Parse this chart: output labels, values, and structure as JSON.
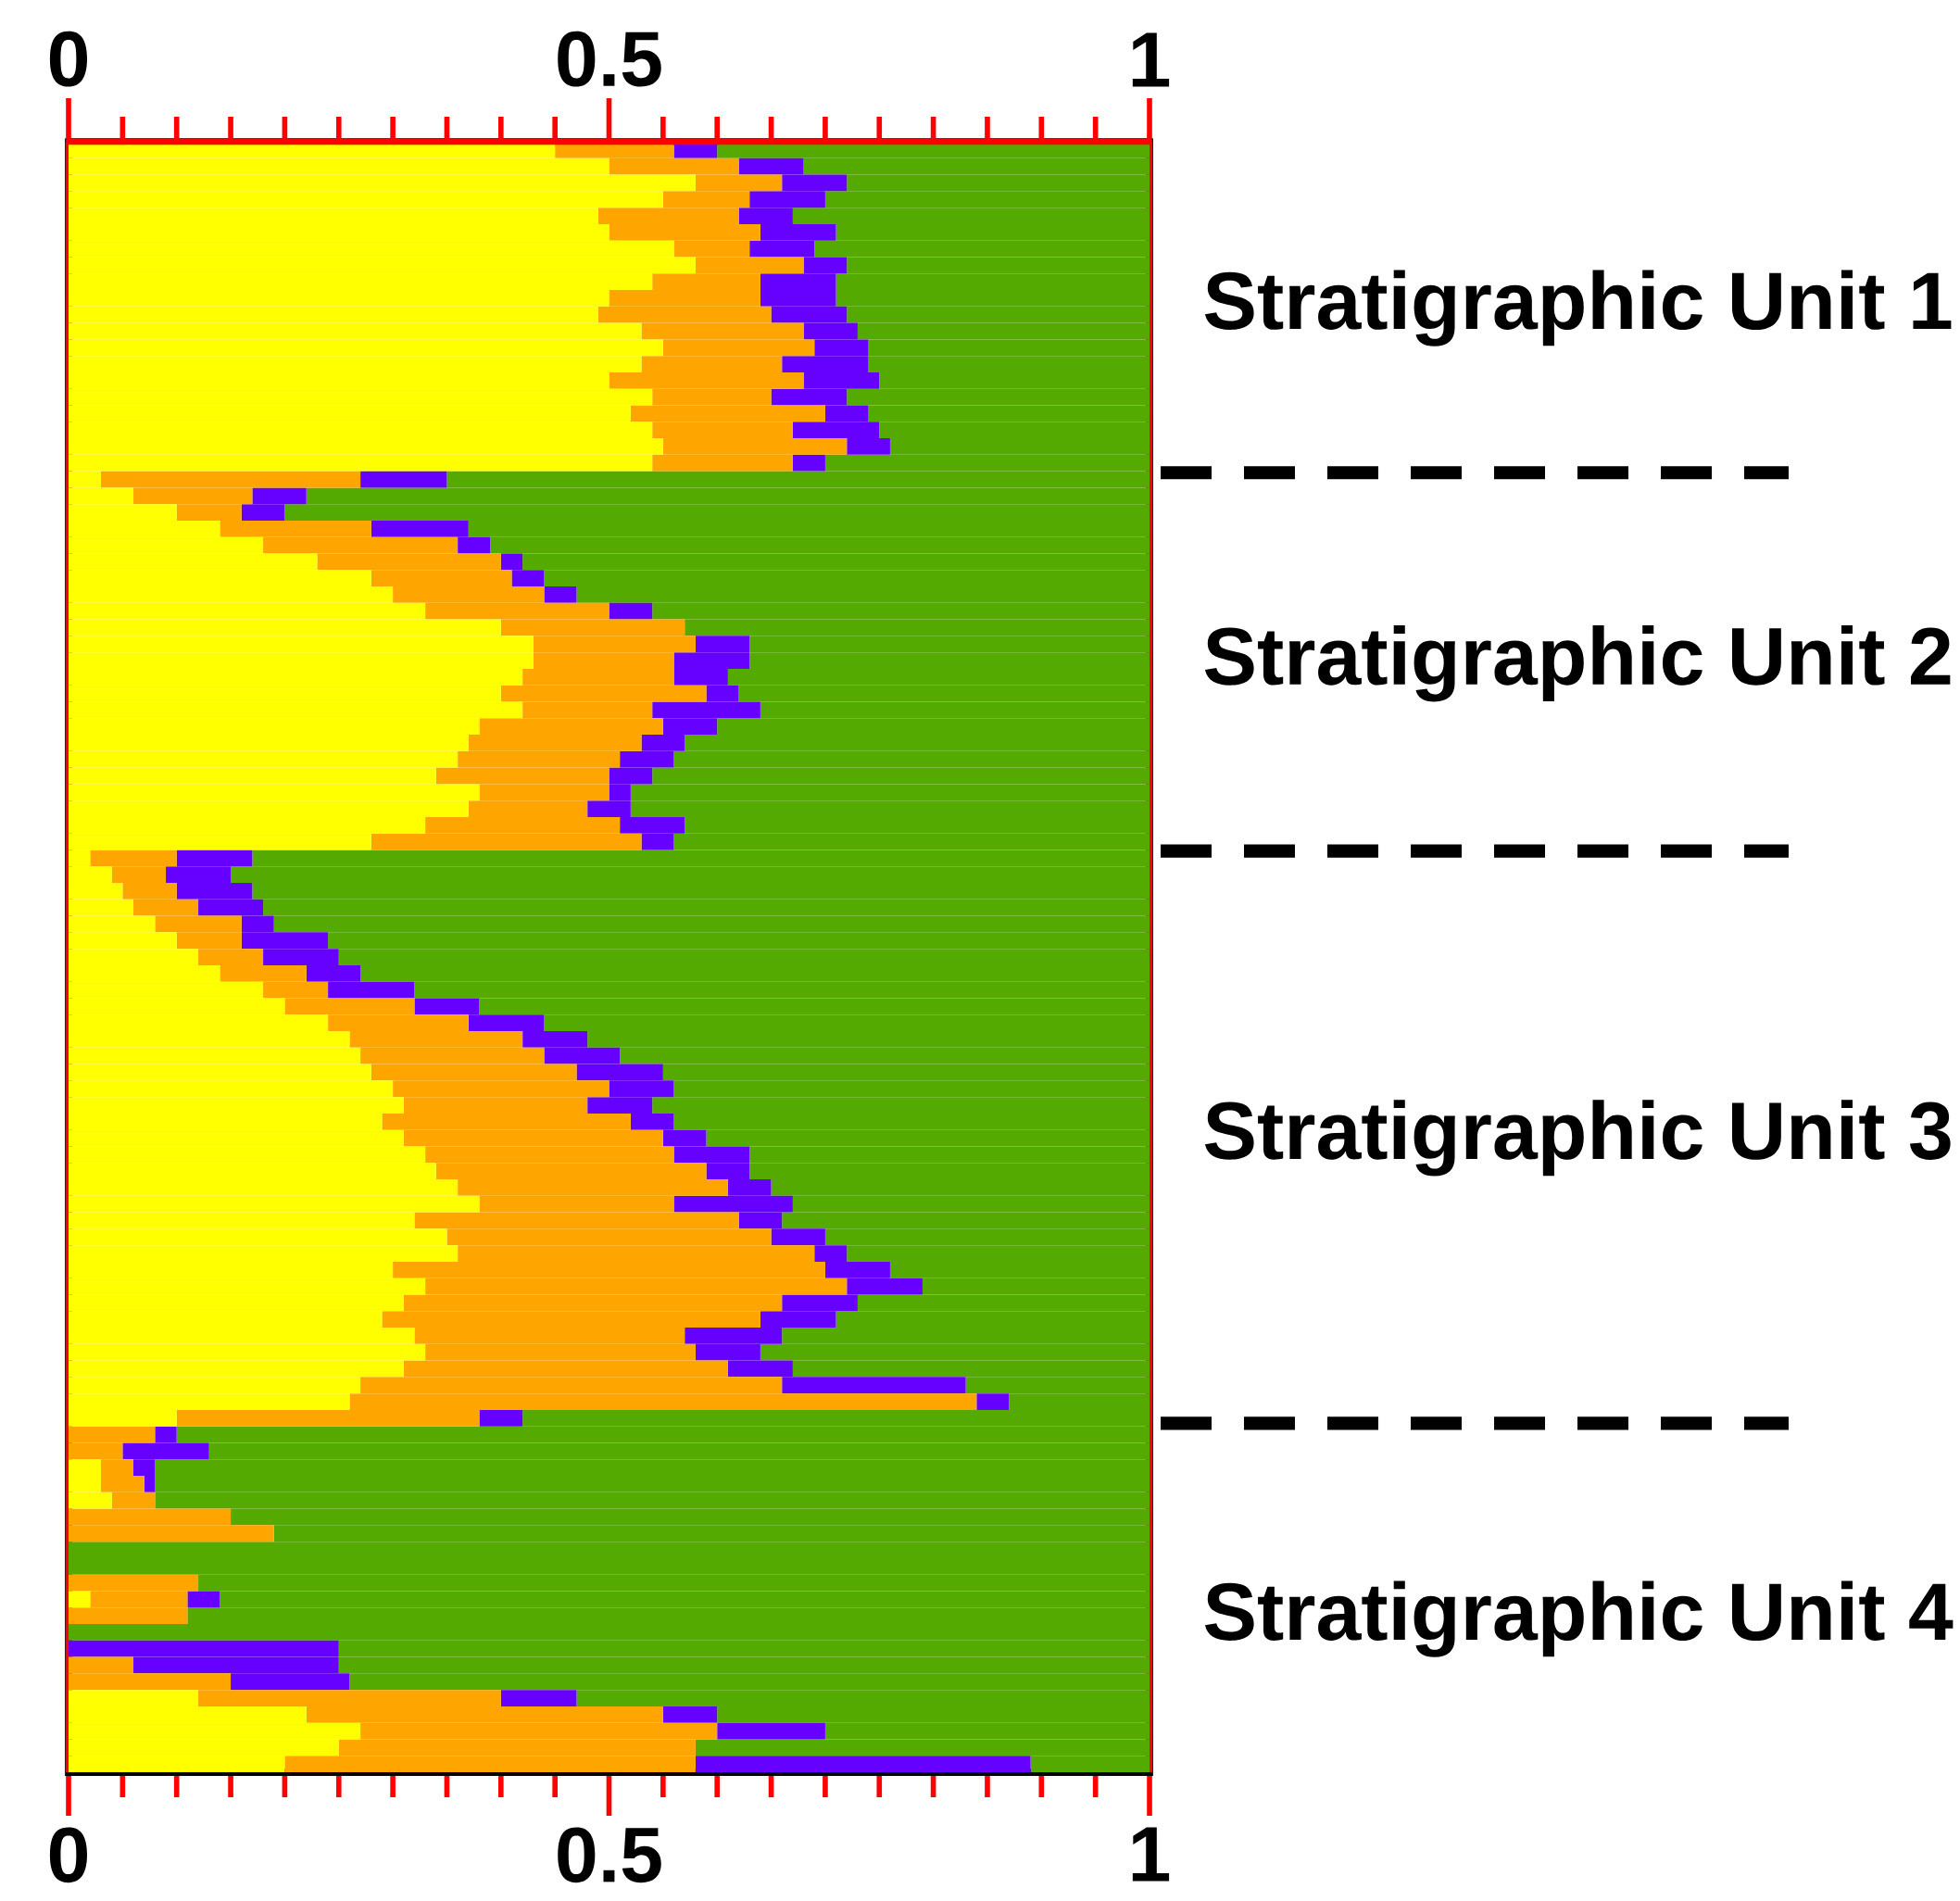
{
  "chart_data": {
    "type": "bar",
    "orientation": "horizontal",
    "stacked": true,
    "categories": [
      null,
      null,
      null,
      null,
      null,
      null,
      null,
      null,
      null,
      null,
      null,
      null,
      null,
      null,
      null,
      null,
      null,
      null,
      null,
      null,
      null,
      null,
      null,
      null,
      null,
      null,
      null,
      null,
      null,
      null,
      null,
      null,
      null,
      null,
      null,
      null,
      null,
      null,
      null,
      null,
      null,
      null,
      null,
      null,
      null,
      null,
      null,
      null,
      null,
      null,
      null,
      null,
      null,
      null,
      null,
      null,
      null,
      null,
      null,
      null,
      null,
      null,
      null,
      null,
      null,
      null,
      null,
      null,
      null,
      null,
      null,
      null,
      null,
      null,
      null,
      null,
      null,
      null,
      null,
      null,
      null,
      null,
      null,
      null,
      null,
      null,
      null,
      null,
      null,
      null,
      null,
      null,
      null,
      null,
      null,
      null,
      null,
      null,
      null
    ],
    "series": [
      {
        "color": "#ffff00",
        "values": [
          0.45,
          0.5,
          0.58,
          0.55,
          0.49,
          0.5,
          0.56,
          0.58,
          0.54,
          0.5,
          0.49,
          0.53,
          0.55,
          0.53,
          0.5,
          0.54,
          0.52,
          0.54,
          0.55,
          0.54,
          0.03,
          0.06,
          0.1,
          0.14,
          0.18,
          0.23,
          0.28,
          0.3,
          0.33,
          0.4,
          0.43,
          0.43,
          0.42,
          0.4,
          0.42,
          0.38,
          0.37,
          0.36,
          0.34,
          0.38,
          0.37,
          0.33,
          0.28,
          0.02,
          0.04,
          0.05,
          0.06,
          0.08,
          0.1,
          0.12,
          0.14,
          0.18,
          0.2,
          0.24,
          0.26,
          0.27,
          0.28,
          0.3,
          0.31,
          0.29,
          0.31,
          0.33,
          0.34,
          0.36,
          0.38,
          0.32,
          0.35,
          0.36,
          0.3,
          0.33,
          0.31,
          0.29,
          0.32,
          0.33,
          0.31,
          0.27,
          0.26,
          0.1,
          0,
          0,
          0.03,
          0.03,
          0.04,
          0,
          0,
          0,
          0,
          0,
          0.02,
          0,
          0,
          0,
          0,
          0,
          0.12,
          0.22,
          0.27,
          0.25,
          0.2
        ]
      },
      {
        "color": "#ffa500",
        "values": [
          0.11,
          0.12,
          0.08,
          0.08,
          0.13,
          0.14,
          0.07,
          0.1,
          0.1,
          0.14,
          0.16,
          0.15,
          0.14,
          0.13,
          0.18,
          0.11,
          0.18,
          0.13,
          0.17,
          0.13,
          0.24,
          0.11,
          0.06,
          0.14,
          0.18,
          0.17,
          0.13,
          0.14,
          0.17,
          0.17,
          0.15,
          0.13,
          0.14,
          0.19,
          0.12,
          0.17,
          0.16,
          0.15,
          0.16,
          0.12,
          0.11,
          0.18,
          0.25,
          0.08,
          0.05,
          0.05,
          0.06,
          0.08,
          0.06,
          0.06,
          0.08,
          0.06,
          0.12,
          0.13,
          0.16,
          0.17,
          0.19,
          0.2,
          0.17,
          0.23,
          0.24,
          0.23,
          0.25,
          0.25,
          0.18,
          0.3,
          0.3,
          0.33,
          0.4,
          0.39,
          0.35,
          0.35,
          0.25,
          0.25,
          0.3,
          0.39,
          0.58,
          0.28,
          0.08,
          0.05,
          0.03,
          0.04,
          0.04,
          0.15,
          0.19,
          0,
          0,
          0.12,
          0.09,
          0.11,
          0,
          0,
          0.06,
          0.15,
          0.28,
          0.33,
          0.33,
          0.33,
          0.38
        ]
      },
      {
        "color": "#6600ff",
        "values": [
          0.04,
          0.06,
          0.06,
          0.07,
          0.05,
          0.07,
          0.06,
          0.04,
          0.07,
          0.07,
          0.07,
          0.05,
          0.05,
          0.08,
          0.07,
          0.07,
          0.04,
          0.08,
          0.04,
          0.03,
          0.08,
          0.05,
          0.04,
          0.09,
          0.03,
          0.02,
          0.03,
          0.03,
          0.04,
          0,
          0.05,
          0.07,
          0.05,
          0.03,
          0.1,
          0.05,
          0.04,
          0.05,
          0.04,
          0.02,
          0.04,
          0.06,
          0.03,
          0.07,
          0.06,
          0.07,
          0.06,
          0.03,
          0.08,
          0.07,
          0.05,
          0.08,
          0.06,
          0.07,
          0.06,
          0.07,
          0.08,
          0.06,
          0.06,
          0.04,
          0.04,
          0.07,
          0.04,
          0.04,
          0.11,
          0.04,
          0.05,
          0.03,
          0.06,
          0.07,
          0.07,
          0.07,
          0.09,
          0.06,
          0.06,
          0.17,
          0.03,
          0.04,
          0.02,
          0.08,
          0.02,
          0.01,
          0,
          0,
          0,
          0,
          0,
          0,
          0.03,
          0,
          0,
          0.25,
          0.19,
          0.11,
          0.07,
          0.05,
          0.1,
          0,
          0.31
        ]
      },
      {
        "color": "#55aa00",
        "values": [
          0.4,
          0.32,
          0.28,
          0.3,
          0.33,
          0.29,
          0.31,
          0.28,
          0.29,
          0.29,
          0.28,
          0.27,
          0.26,
          0.26,
          0.25,
          0.28,
          0.26,
          0.25,
          0.24,
          0.3,
          0.65,
          0.78,
          0.8,
          0.63,
          0.61,
          0.58,
          0.56,
          0.53,
          0.46,
          0.43,
          0.37,
          0.37,
          0.39,
          0.38,
          0.36,
          0.4,
          0.43,
          0.44,
          0.46,
          0.48,
          0.48,
          0.43,
          0.44,
          0.83,
          0.85,
          0.83,
          0.82,
          0.81,
          0.76,
          0.75,
          0.73,
          0.68,
          0.62,
          0.56,
          0.52,
          0.49,
          0.45,
          0.44,
          0.46,
          0.44,
          0.41,
          0.37,
          0.37,
          0.35,
          0.33,
          0.34,
          0.3,
          0.28,
          0.24,
          0.21,
          0.27,
          0.29,
          0.34,
          0.36,
          0.33,
          0.17,
          0.13,
          0.58,
          0.9,
          0.87,
          0.92,
          0.92,
          0.92,
          0.85,
          0.81,
          1,
          1,
          0.88,
          0.86,
          0.89,
          1,
          0.75,
          0.75,
          0.74,
          0.53,
          0.4,
          0.3,
          0.42,
          0.11
        ]
      }
    ],
    "xlim": [
      0,
      1
    ],
    "xticks": [
      0,
      0.5,
      1
    ],
    "x2lim": [
      0,
      1
    ],
    "x2ticks": [
      0,
      0.5,
      1
    ],
    "annotations": [
      "Stratigraphic Unit 1",
      "Stratigraphic Unit 2",
      "Stratigraphic Unit 3",
      "Stratigraphic Unit 4"
    ]
  }
}
